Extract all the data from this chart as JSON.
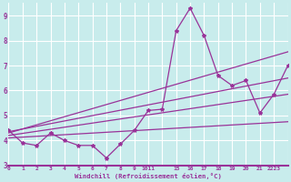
{
  "xlabel": "Windchill (Refroidissement éolien,°C)",
  "bg_color": "#c8ecec",
  "grid_color": "#ffffff",
  "line_color": "#993399",
  "ylim": [
    3,
    9.5
  ],
  "yticks": [
    3,
    4,
    5,
    6,
    7,
    8,
    9
  ],
  "xtick_labels": [
    "0",
    "1",
    "2",
    "3",
    "4",
    "5",
    "6",
    "7",
    "8",
    "9",
    "1011",
    "",
    "15",
    "16",
    "17",
    "18",
    "19",
    "20",
    "21",
    "2223"
  ],
  "n_xticks": 20,
  "series": [
    {
      "x": [
        0,
        1,
        2,
        3,
        4,
        5,
        6,
        7,
        8,
        9,
        10,
        11,
        15,
        16,
        17,
        18,
        19,
        20,
        21,
        22,
        23
      ],
      "xi": [
        0,
        1,
        2,
        3,
        4,
        5,
        6,
        7,
        8,
        9,
        10,
        11,
        12,
        13,
        14,
        15,
        16,
        17,
        18,
        19,
        20
      ],
      "y": [
        4.4,
        3.9,
        3.8,
        4.3,
        4.0,
        3.8,
        3.8,
        3.3,
        3.85,
        4.4,
        5.2,
        5.25,
        8.4,
        9.3,
        8.2,
        6.6,
        6.2,
        6.4,
        5.1,
        5.85,
        7.0
      ]
    },
    {
      "xi": [
        0,
        20
      ],
      "y": [
        4.3,
        7.55
      ]
    },
    {
      "xi": [
        0,
        20
      ],
      "y": [
        4.35,
        6.5
      ]
    },
    {
      "xi": [
        0,
        20
      ],
      "y": [
        4.2,
        5.85
      ]
    },
    {
      "xi": [
        0,
        20
      ],
      "y": [
        4.1,
        4.75
      ]
    }
  ],
  "xtick_positions": [
    0,
    1,
    2,
    3,
    4,
    5,
    6,
    7,
    8,
    9,
    10,
    12,
    13,
    14,
    15,
    16,
    17,
    18,
    19,
    20
  ],
  "xtick_display": [
    "0",
    "1",
    "2",
    "3",
    "4",
    "5",
    "6",
    "7",
    "8",
    "9",
    "1011",
    "15",
    "16",
    "17",
    "18",
    "19",
    "20",
    "21",
    "2223",
    ""
  ]
}
